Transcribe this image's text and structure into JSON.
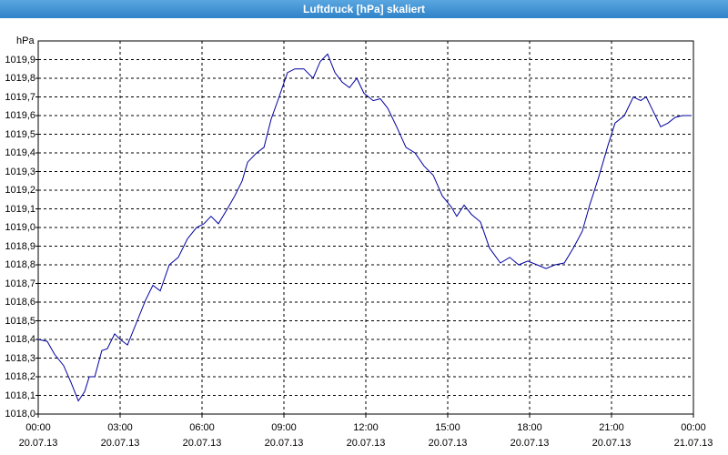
{
  "chart_data": {
    "type": "line",
    "title": "Luftdruck [hPa] skaliert",
    "y_label": "hPa",
    "xlim": [
      0,
      24
    ],
    "ylim": [
      1018.0,
      1020.0
    ],
    "xticks": [
      {
        "value": 0,
        "label": "00:00\n20.07.13"
      },
      {
        "value": 3,
        "label": "03:00\n20.07.13"
      },
      {
        "value": 6,
        "label": "06:00\n20.07.13"
      },
      {
        "value": 9,
        "label": "09:00\n20.07.13"
      },
      {
        "value": 12,
        "label": "12:00\n20.07.13"
      },
      {
        "value": 15,
        "label": "15:00\n20.07.13"
      },
      {
        "value": 18,
        "label": "18:00\n20.07.13"
      },
      {
        "value": 21,
        "label": "21:00\n20.07.13"
      },
      {
        "value": 24,
        "label": "00:00\n21.07.13"
      }
    ],
    "yticks": [
      {
        "value": 1018.0,
        "label": "1018,0"
      },
      {
        "value": 1018.1,
        "label": "1018,1"
      },
      {
        "value": 1018.2,
        "label": "1018,2"
      },
      {
        "value": 1018.3,
        "label": "1018,3"
      },
      {
        "value": 1018.4,
        "label": "1018,4"
      },
      {
        "value": 1018.5,
        "label": "1018,5"
      },
      {
        "value": 1018.6,
        "label": "1018,6"
      },
      {
        "value": 1018.7,
        "label": "1018,7"
      },
      {
        "value": 1018.8,
        "label": "1018,8"
      },
      {
        "value": 1018.9,
        "label": "1018,9"
      },
      {
        "value": 1019.0,
        "label": "1019,0"
      },
      {
        "value": 1019.1,
        "label": "1019,1"
      },
      {
        "value": 1019.2,
        "label": "1019,2"
      },
      {
        "value": 1019.3,
        "label": "1019,3"
      },
      {
        "value": 1019.4,
        "label": "1019,4"
      },
      {
        "value": 1019.5,
        "label": "1019,5"
      },
      {
        "value": 1019.6,
        "label": "1019,6"
      },
      {
        "value": 1019.7,
        "label": "1019,7"
      },
      {
        "value": 1019.8,
        "label": "1019,8"
      },
      {
        "value": 1019.9,
        "label": "1019,9"
      }
    ],
    "grid": true,
    "series": [
      {
        "name": "Luftdruck",
        "color": "#0000a0",
        "x": [
          0,
          0.33,
          0.6,
          0.93,
          1.2,
          1.47,
          1.7,
          1.87,
          2.07,
          2.33,
          2.53,
          2.8,
          3.0,
          3.27,
          3.6,
          3.93,
          4.2,
          4.47,
          4.8,
          5.13,
          5.47,
          5.8,
          6.07,
          6.33,
          6.6,
          6.93,
          7.2,
          7.47,
          7.67,
          8.0,
          8.27,
          8.53,
          8.8,
          9.13,
          9.4,
          9.73,
          10.07,
          10.33,
          10.6,
          10.87,
          11.13,
          11.4,
          11.67,
          11.93,
          12.27,
          12.53,
          12.8,
          13.13,
          13.47,
          13.8,
          14.13,
          14.47,
          14.8,
          15.13,
          15.33,
          15.6,
          15.87,
          16.2,
          16.53,
          16.93,
          17.27,
          17.6,
          17.93,
          18.27,
          18.6,
          18.93,
          19.27,
          19.6,
          19.93,
          20.2,
          20.53,
          20.87,
          21.13,
          21.47,
          21.8,
          22.07,
          22.27,
          22.47,
          22.8,
          23.07,
          23.33,
          23.6,
          23.93
        ],
        "values": [
          1018.4,
          1018.39,
          1018.32,
          1018.26,
          1018.17,
          1018.07,
          1018.12,
          1018.2,
          1018.2,
          1018.34,
          1018.35,
          1018.43,
          1018.4,
          1018.37,
          1018.49,
          1018.61,
          1018.69,
          1018.66,
          1018.8,
          1018.84,
          1018.94,
          1019.0,
          1019.02,
          1019.06,
          1019.02,
          1019.1,
          1019.17,
          1019.25,
          1019.35,
          1019.4,
          1019.43,
          1019.58,
          1019.69,
          1019.83,
          1019.85,
          1019.85,
          1019.8,
          1019.89,
          1019.93,
          1019.83,
          1019.78,
          1019.75,
          1019.8,
          1019.72,
          1019.68,
          1019.69,
          1019.64,
          1019.54,
          1019.43,
          1019.4,
          1019.33,
          1019.28,
          1019.17,
          1019.11,
          1019.06,
          1019.12,
          1019.07,
          1019.03,
          1018.89,
          1018.81,
          1018.84,
          1018.8,
          1018.82,
          1018.8,
          1018.78,
          1018.8,
          1018.81,
          1018.89,
          1018.98,
          1019.12,
          1019.27,
          1019.44,
          1019.56,
          1019.6,
          1019.7,
          1019.68,
          1019.7,
          1019.64,
          1019.54,
          1019.56,
          1019.59,
          1019.6,
          1019.6
        ]
      }
    ]
  }
}
